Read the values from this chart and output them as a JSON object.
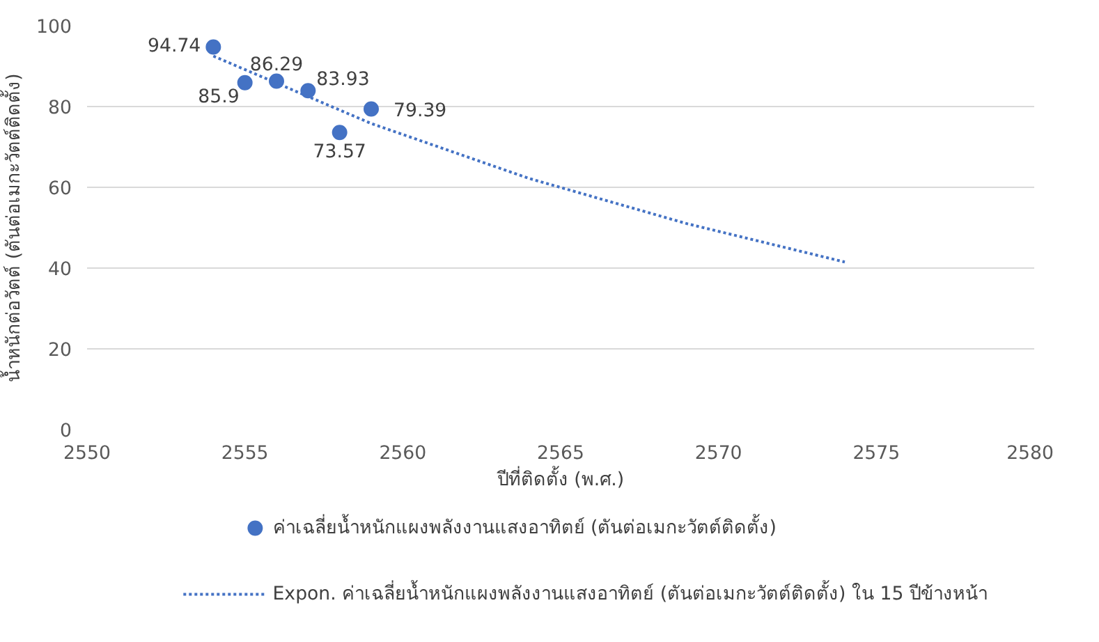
{
  "chart_data": {
    "type": "scatter",
    "xlabel": "ปีที่ติดตั้ง (พ.ศ.)",
    "ylabel": "น้ำหนักต่อวัตต์ (ตันต่อเมกะวัตต์ติดตั้ง)",
    "x": [
      2554,
      2555,
      2556,
      2557,
      2558,
      2559
    ],
    "series": [
      {
        "name": "ค่าเฉลี่ยน้ำหนักแผงพลังงานแสงอาทิตย์ (ตันต่อเมกะวัตต์ติดตั้ง)",
        "color": "#4472c4",
        "values": [
          94.74,
          85.9,
          86.29,
          83.93,
          73.57,
          79.39
        ],
        "value_labels": [
          "94.74",
          "85.9",
          "86.29",
          "83.93",
          "73.57",
          "79.39"
        ],
        "marker": "circle"
      },
      {
        "name": "Expon. ค่าเฉลี่ยน้ำหนักแผงพลังงานแสงอาทิตย์ (ตันต่อเมกะวัตต์ติดตั้ง) ใน 15 ปีข้างหน้า",
        "type": "line",
        "color": "#4472c4",
        "line_style": "dotted",
        "x": [
          2554,
          2559,
          2564,
          2569,
          2574
        ],
        "values": [
          92.5,
          75.8,
          62.2,
          51.0,
          41.5
        ]
      }
    ],
    "xlim": [
      2550,
      2580
    ],
    "xticks": [
      2550,
      2555,
      2560,
      2565,
      2570,
      2575,
      2580
    ],
    "ylim": [
      0,
      100
    ],
    "yticks": [
      0,
      20,
      40,
      60,
      80,
      100
    ],
    "grid": "y",
    "legend": "bottom"
  }
}
